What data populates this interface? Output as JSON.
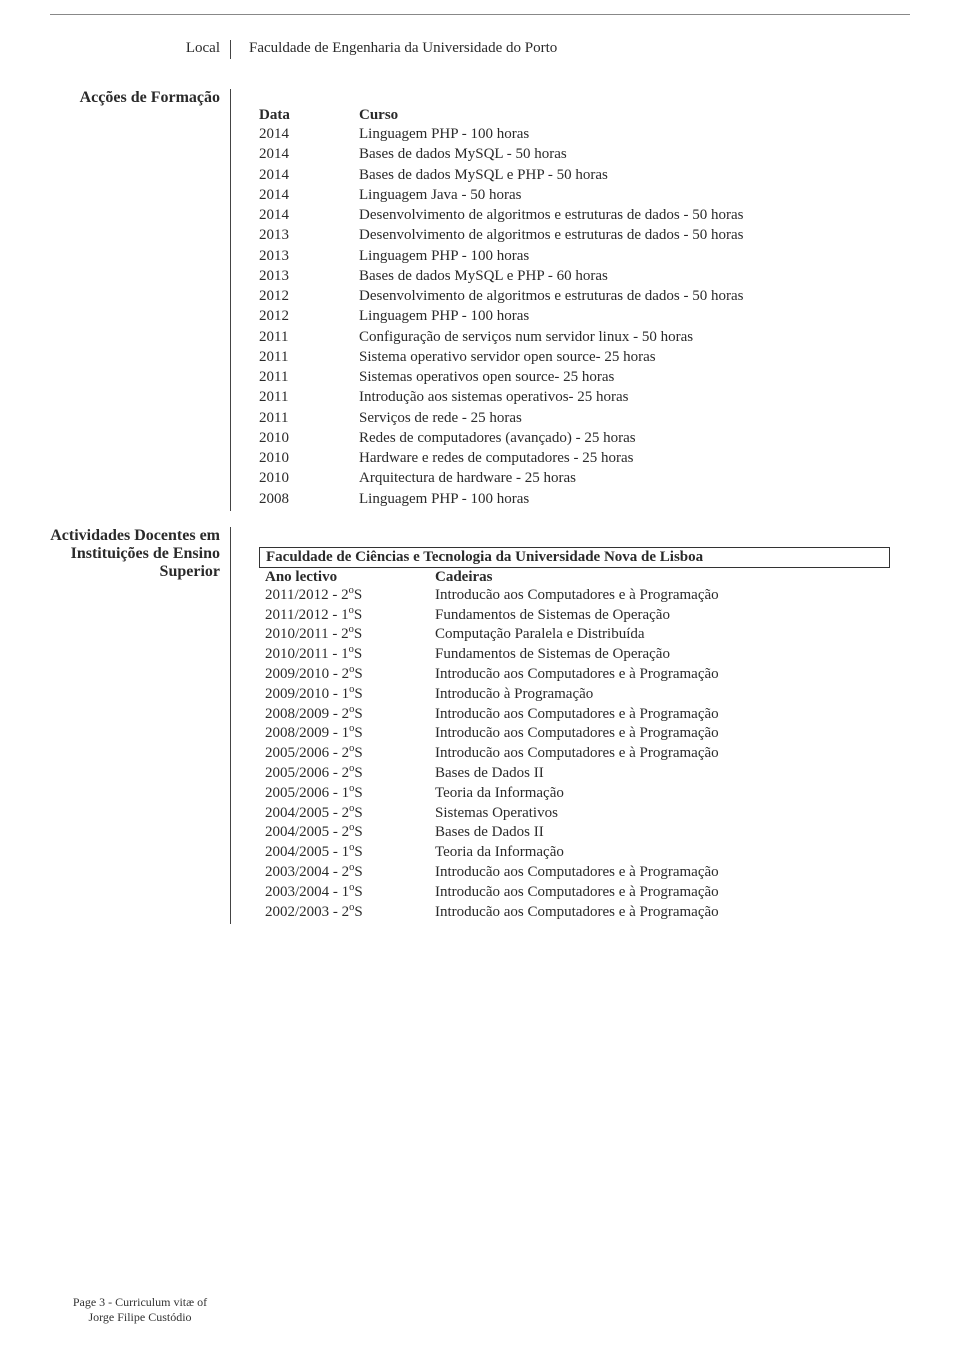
{
  "local": {
    "label": "Local",
    "value": "Faculdade de Engenharia da Universidade do Porto"
  },
  "training": {
    "section_label": "Acções de Formação",
    "header_date": "Data",
    "header_course": "Curso",
    "rows": [
      {
        "year": "2014",
        "course": "Linguagem PHP - 100 horas"
      },
      {
        "year": "2014",
        "course": "Bases de dados MySQL - 50 horas"
      },
      {
        "year": "2014",
        "course": "Bases de dados MySQL e PHP - 50 horas"
      },
      {
        "year": "2014",
        "course": "Linguagem Java - 50 horas"
      },
      {
        "year": "2014",
        "course": "Desenvolvimento de algoritmos e estruturas de dados - 50 horas"
      },
      {
        "year": "2013",
        "course": "Desenvolvimento de algoritmos e estruturas de dados - 50 horas"
      },
      {
        "year": "2013",
        "course": "Linguagem PHP - 100 horas"
      },
      {
        "year": "2013",
        "course": "Bases de dados MySQL e PHP - 60 horas"
      },
      {
        "year": "2012",
        "course": "Desenvolvimento de algoritmos e estruturas de dados - 50 horas"
      },
      {
        "year": "2012",
        "course": "Linguagem PHP - 100 horas"
      },
      {
        "year": "2011",
        "course": "Configuração de serviços num servidor linux - 50 horas"
      },
      {
        "year": "2011",
        "course": "Sistema operativo servidor open source- 25 horas"
      },
      {
        "year": "2011",
        "course": "Sistemas operativos open source- 25 horas"
      },
      {
        "year": "2011",
        "course": "Introdução aos sistemas operativos- 25 horas"
      },
      {
        "year": "2011",
        "course": "Serviços de rede - 25 horas"
      },
      {
        "year": "2010",
        "course": "Redes de computadores (avançado) - 25 horas"
      },
      {
        "year": "2010",
        "course": "Hardware e redes de computadores - 25 horas"
      },
      {
        "year": "2010",
        "course": "Arquitectura de hardware - 25 horas"
      },
      {
        "year": "2008",
        "course": "Linguagem PHP - 100 horas"
      }
    ]
  },
  "teaching": {
    "section_label": "Actividades Docentes em Instituições de Ensino Superior",
    "institution": "Faculdade de Ciências e Tecnologia da Universidade Nova de Lisboa",
    "header_year": "Ano lectivo",
    "header_subject": "Cadeiras",
    "rows": [
      {
        "ano": "2011/2012 - 2",
        "sem": "o",
        "suf": "S",
        "cad": "Introducão aos Computadores e à Programação"
      },
      {
        "ano": "2011/2012 - 1",
        "sem": "o",
        "suf": "S",
        "cad": "Fundamentos de Sistemas de Operação"
      },
      {
        "ano": "2010/2011 - 2",
        "sem": "o",
        "suf": "S",
        "cad": "Computação Paralela e Distribuída"
      },
      {
        "ano": "2010/2011 - 1",
        "sem": "o",
        "suf": "S",
        "cad": "Fundamentos de Sistemas de Operação"
      },
      {
        "ano": "2009/2010 - 2",
        "sem": "o",
        "suf": "S",
        "cad": "Introducão aos Computadores e à Programação"
      },
      {
        "ano": "2009/2010 - 1",
        "sem": "o",
        "suf": "S",
        "cad": "Introducão à Programação"
      },
      {
        "ano": "2008/2009 - 2",
        "sem": "o",
        "suf": "S",
        "cad": "Introducão aos Computadores e à Programação"
      },
      {
        "ano": "2008/2009 - 1",
        "sem": "o",
        "suf": "S",
        "cad": "Introducão aos Computadores e à Programação"
      },
      {
        "ano": "2005/2006 - 2",
        "sem": "o",
        "suf": "S",
        "cad": "Introducão aos Computadores e à Programação"
      },
      {
        "ano": "2005/2006 - 2",
        "sem": "o",
        "suf": "S",
        "cad": "Bases de Dados II"
      },
      {
        "ano": "2005/2006 - 1",
        "sem": "o",
        "suf": "S",
        "cad": "Teoria da Informação"
      },
      {
        "ano": "2004/2005 - 2",
        "sem": "o",
        "suf": "S",
        "cad": "Sistemas Operativos"
      },
      {
        "ano": "2004/2005 - 2",
        "sem": "o",
        "suf": "S",
        "cad": "Bases de Dados II"
      },
      {
        "ano": "2004/2005 - 1",
        "sem": "o",
        "suf": "S",
        "cad": "Teoria da Informação"
      },
      {
        "ano": "2003/2004 - 2",
        "sem": "o",
        "suf": "S",
        "cad": "Introducão aos Computadores e à Programação"
      },
      {
        "ano": "2003/2004 - 1",
        "sem": "o",
        "suf": "S",
        "cad": "Introducão aos Computadores e à Programação"
      },
      {
        "ano": "2002/2003 - 2",
        "sem": "o",
        "suf": "S",
        "cad": "Introducão aos Computadores e à Programação"
      }
    ]
  },
  "footer": {
    "line1": "Page 3 - Curriculum vitæ of",
    "line2": "Jorge Filipe Custódio"
  }
}
